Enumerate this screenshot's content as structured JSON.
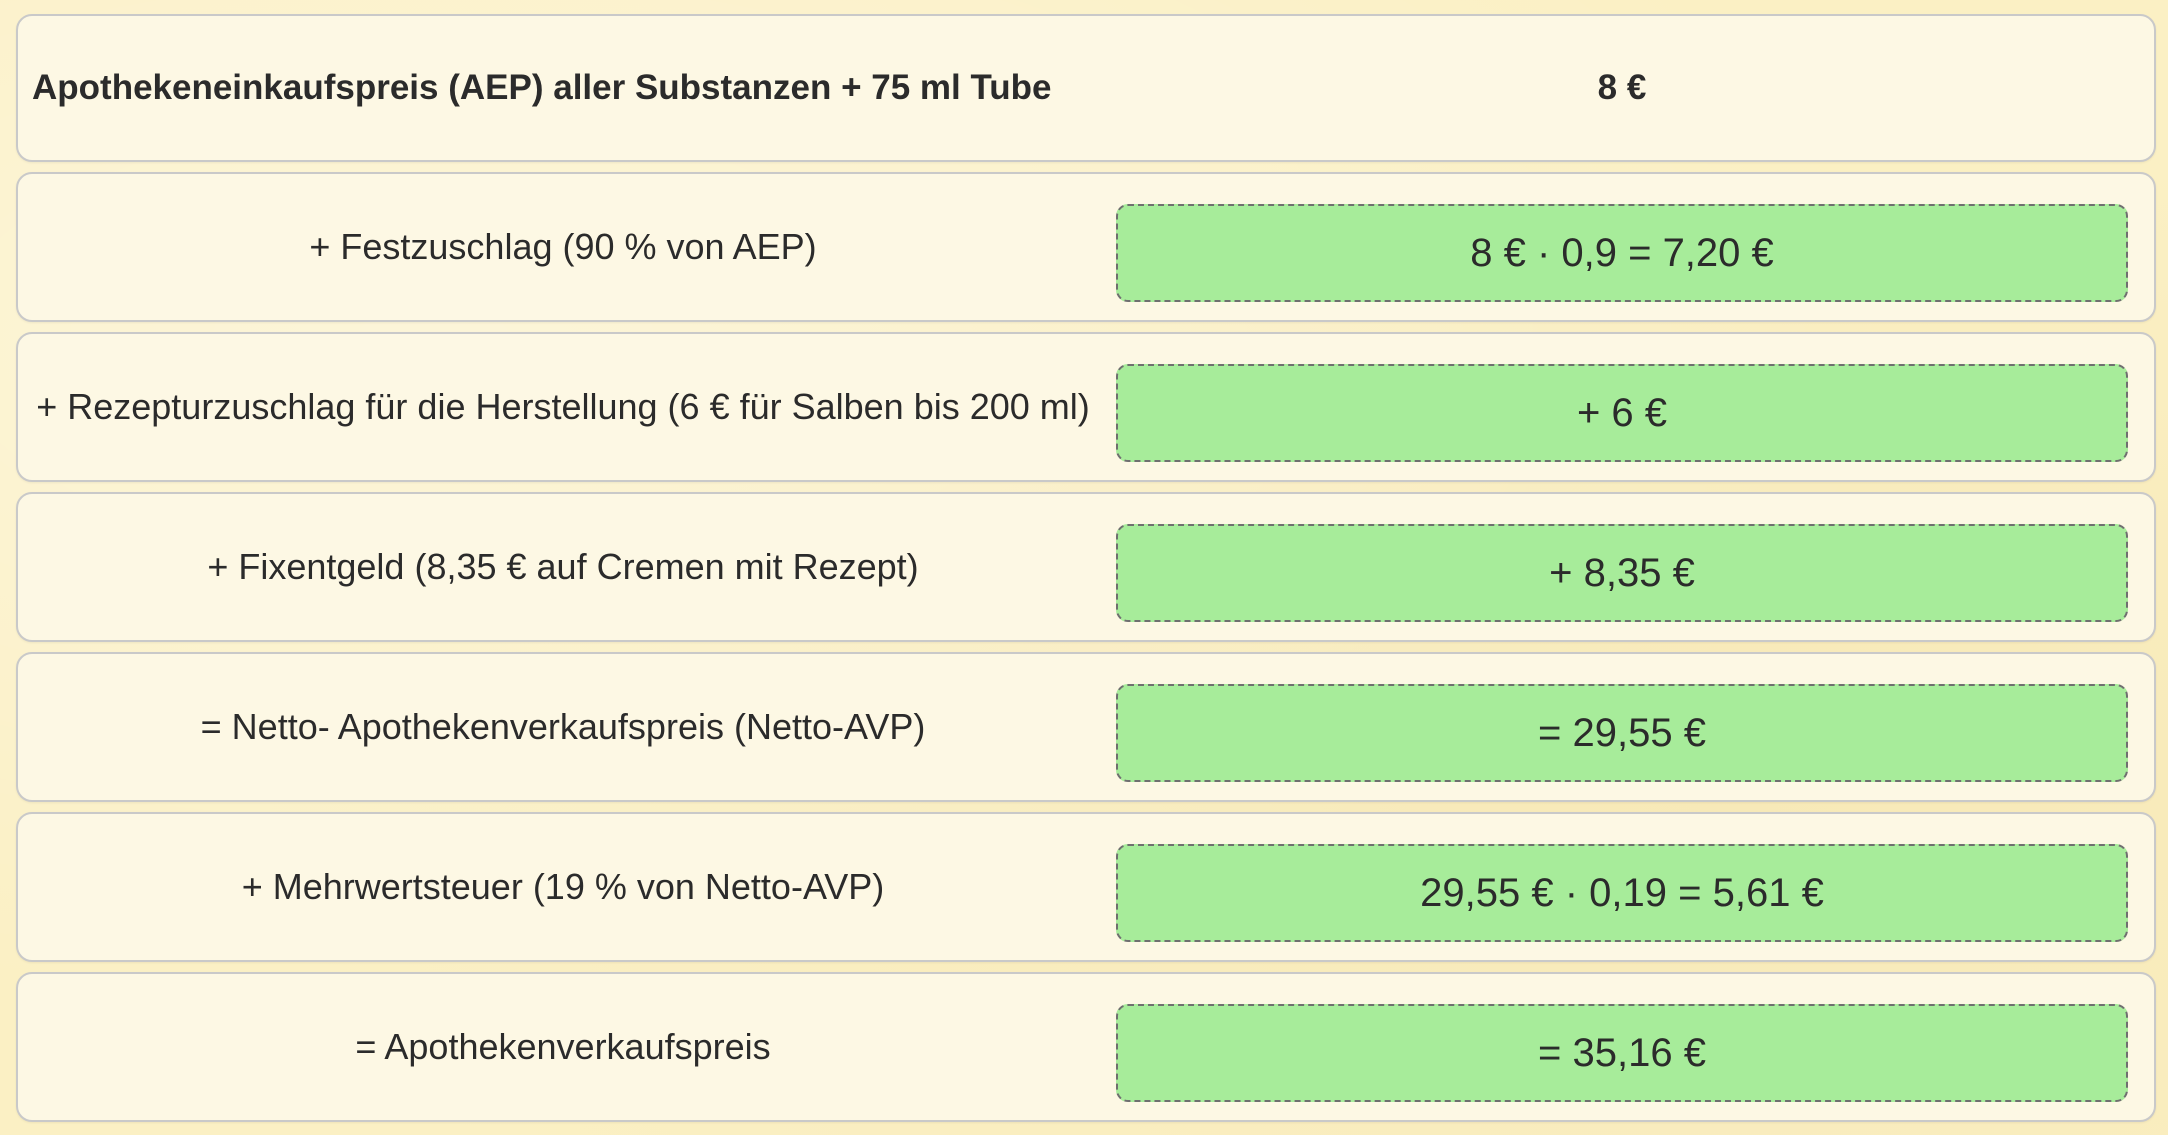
{
  "rows": [
    {
      "label": "Apothekeneinkaufspreis (AEP) aller Substanzen + 75 ml Tube",
      "value": "8 €"
    },
    {
      "label": "+ Festzuschlag (90 % von AEP)",
      "value": "8 € · 0,9 = 7,20 €"
    },
    {
      "label": "+ Rezepturzuschlag für die Herstellung (6 € für Salben bis 200 ml)",
      "value": "+ 6 €"
    },
    {
      "label": "+ Fixentgeld (8,35 € auf Cremen mit Rezept)",
      "value": "+ 8,35 €"
    },
    {
      "label": "= Netto- Apothekenverkaufspreis (Netto-AVP)",
      "value": "= 29,55 €"
    },
    {
      "label": "+ Mehrwertsteuer (19 % von Netto-AVP)",
      "value": "29,55 € · 0,19 = 5,61 €"
    },
    {
      "label": "= Apothekenverkaufspreis",
      "value": "= 35,16 €"
    }
  ],
  "colors": {
    "background": "#fbf0c4",
    "row_background": "#fdf8e4",
    "value_box": "#a7ec9a"
  }
}
